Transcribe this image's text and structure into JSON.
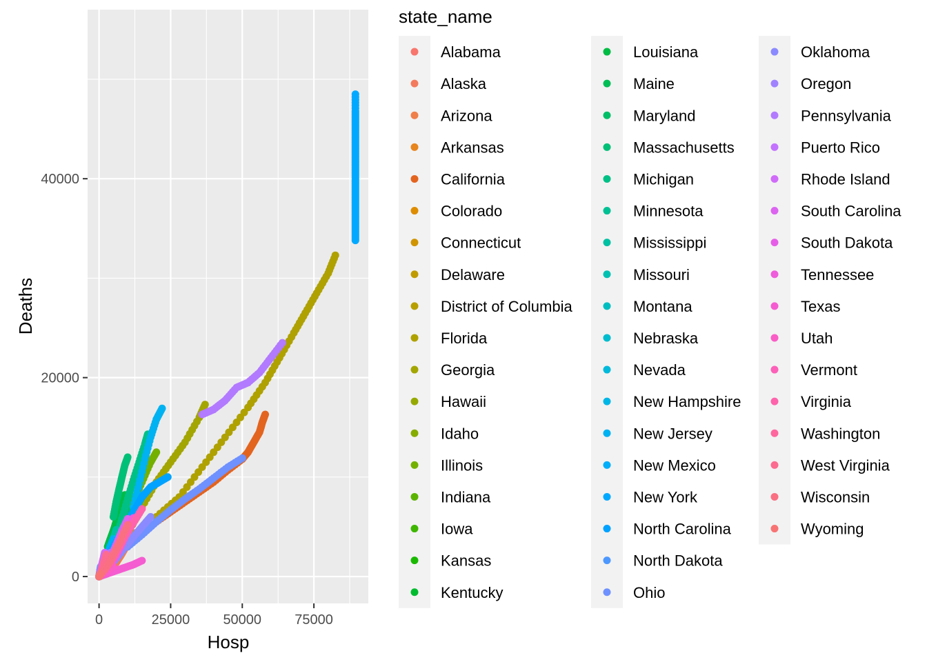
{
  "chart_data": {
    "type": "scatter",
    "xlabel": "Hosp",
    "ylabel": "Deaths",
    "xlim": [
      -4000,
      94000
    ],
    "ylim": [
      -2700,
      57000
    ],
    "x_ticks": [
      0,
      25000,
      50000,
      75000
    ],
    "x_tick_labels": [
      "0",
      "25000",
      "50000",
      "75000"
    ],
    "y_ticks": [
      0,
      20000,
      40000
    ],
    "y_tick_labels": [
      "0",
      "20000",
      "40000"
    ],
    "grid": true,
    "legend": {
      "title": "state_name",
      "placement": "right",
      "columns": 3
    },
    "series": [
      {
        "name": "Alabama",
        "color": "#F8766D",
        "x": [
          0,
          500,
          1000,
          1500,
          2000,
          2500,
          3000
        ],
        "y": [
          0,
          100,
          250,
          450,
          700,
          900,
          1100
        ]
      },
      {
        "name": "Alaska",
        "color": "#F47A5D",
        "x": [
          0,
          50,
          100
        ],
        "y": [
          0,
          5,
          10
        ]
      },
      {
        "name": "Arizona",
        "color": "#EF7F4B",
        "x": [
          0,
          2000,
          4000,
          6000,
          8000,
          10000,
          12000
        ],
        "y": [
          0,
          300,
          800,
          1400,
          2300,
          3300,
          4400
        ]
      },
      {
        "name": "Arkansas",
        "color": "#E7851E",
        "x": [
          0,
          500,
          1000,
          1500,
          2000,
          2500,
          3000,
          3500,
          4000
        ],
        "y": [
          0,
          50,
          150,
          300,
          500,
          700,
          900,
          1100,
          1200
        ]
      },
      {
        "name": "California",
        "color": "#E3641F",
        "x": [
          20000,
          25000,
          30000,
          35000,
          40000,
          45000,
          50000,
          52000,
          54000,
          56000,
          57000,
          58000
        ],
        "y": [
          5500,
          6500,
          7500,
          8500,
          9500,
          10700,
          11800,
          12500,
          13500,
          14500,
          15500,
          16300
        ]
      },
      {
        "name": "Colorado",
        "color": "#DE8C00",
        "x": [
          0,
          2000,
          4000,
          6000,
          8000,
          10000
        ],
        "y": [
          0,
          700,
          1500,
          2300,
          3000,
          3600
        ]
      },
      {
        "name": "Connecticut",
        "color": "#CF9400",
        "x": [
          0,
          2000,
          4000,
          6000,
          8000,
          10000,
          11000
        ],
        "y": [
          0,
          1000,
          2000,
          3000,
          4100,
          5500,
          6500
        ]
      },
      {
        "name": "Delaware",
        "color": "#BF9B00",
        "x": [
          0,
          200,
          400,
          600
        ],
        "y": [
          0,
          100,
          300,
          500
        ]
      },
      {
        "name": "District of Columbia",
        "color": "#B79F00",
        "x": [
          0,
          100,
          200,
          300
        ],
        "y": [
          0,
          50,
          150,
          250
        ]
      },
      {
        "name": "Florida",
        "color": "#AFA100",
        "x": [
          20000,
          28000,
          36000,
          44000,
          52000,
          58000,
          63000,
          68000,
          72000,
          76000,
          80000,
          82500
        ],
        "y": [
          6000,
          8000,
          11000,
          14000,
          17000,
          19500,
          22000,
          24500,
          26500,
          28500,
          30500,
          32300
        ]
      },
      {
        "name": "Georgia",
        "color": "#A3A500",
        "x": [
          5000,
          10000,
          15000,
          20000,
          25000,
          30000,
          35000,
          37000
        ],
        "y": [
          2000,
          4300,
          7000,
          9500,
          11500,
          13500,
          16000,
          17300
        ]
      },
      {
        "name": "Hawaii",
        "color": "#96A900",
        "x": [
          0,
          100,
          200,
          300
        ],
        "y": [
          0,
          50,
          100,
          150
        ]
      },
      {
        "name": "Idaho",
        "color": "#86AC00",
        "x": [
          0,
          300,
          600,
          900,
          1200
        ],
        "y": [
          0,
          100,
          250,
          400,
          550
        ]
      },
      {
        "name": "Illinois",
        "color": "#73B000",
        "x": [
          0,
          3000,
          6000,
          9000,
          12000,
          15000,
          18000,
          20000
        ],
        "y": [
          0,
          1500,
          3500,
          5500,
          7500,
          9500,
          11500,
          12500
        ]
      },
      {
        "name": "Indiana",
        "color": "#5BB300",
        "x": [
          0,
          2000,
          4000,
          6000,
          8000,
          10000,
          12000
        ],
        "y": [
          0,
          1000,
          2200,
          3500,
          5000,
          6500,
          8000
        ]
      },
      {
        "name": "Iowa",
        "color": "#3FB600",
        "x": [
          0,
          1000,
          2000,
          3000,
          4000
        ],
        "y": [
          0,
          600,
          1400,
          2400,
          3300
        ]
      },
      {
        "name": "Kansas",
        "color": "#1AB900",
        "x": [
          0,
          1000,
          2000,
          3000,
          4000,
          5000
        ],
        "y": [
          0,
          300,
          700,
          1400,
          2200,
          3000
        ]
      },
      {
        "name": "Kentucky",
        "color": "#00BB2E",
        "x": [
          0,
          2000,
          4000,
          6000,
          8000,
          9000
        ],
        "y": [
          0,
          500,
          1200,
          2200,
          3500,
          4500
        ]
      },
      {
        "name": "Louisiana",
        "color": "#00BC45",
        "x": [
          3000,
          4000,
          5000,
          6000,
          7000,
          8000,
          9000
        ],
        "y": [
          3000,
          3800,
          4600,
          5500,
          6400,
          7500,
          8200
        ]
      },
      {
        "name": "Maine",
        "color": "#00BD56",
        "x": [
          0,
          100,
          200,
          300
        ],
        "y": [
          0,
          100,
          200,
          300
        ]
      },
      {
        "name": "Maryland",
        "color": "#00BE67",
        "x": [
          0,
          3000,
          6000,
          9000,
          12000,
          14000
        ],
        "y": [
          0,
          1500,
          3300,
          5200,
          7000,
          8200
        ]
      },
      {
        "name": "Massachusetts",
        "color": "#00BF77",
        "x": [
          5000,
          6000,
          7000,
          8000,
          9000,
          10000
        ],
        "y": [
          6000,
          7500,
          8800,
          10000,
          11200,
          12000
        ]
      },
      {
        "name": "Michigan",
        "color": "#00C086",
        "x": [
          2000,
          4000,
          6000,
          8000,
          10000,
          12000,
          14000,
          16000,
          17000
        ],
        "y": [
          1000,
          2500,
          4000,
          5800,
          7800,
          9700,
          11500,
          13300,
          14300
        ]
      },
      {
        "name": "Minnesota",
        "color": "#00C094",
        "x": [
          0,
          2000,
          4000,
          6000,
          8000,
          10000
        ],
        "y": [
          0,
          800,
          1600,
          2700,
          3800,
          4600
        ]
      },
      {
        "name": "Mississippi",
        "color": "#00C0A3",
        "x": [
          0,
          1000,
          2000,
          3000,
          4000,
          5000,
          6000
        ],
        "y": [
          0,
          500,
          1100,
          1900,
          2900,
          3800,
          4700
        ]
      },
      {
        "name": "Missouri",
        "color": "#00C0B2",
        "x": [
          0,
          2000,
          4000,
          6000,
          8000,
          10000
        ],
        "y": [
          0,
          400,
          1100,
          2200,
          3500,
          5000
        ]
      },
      {
        "name": "Montana",
        "color": "#00BEC0",
        "x": [
          0,
          300,
          600,
          900,
          1200
        ],
        "y": [
          0,
          100,
          250,
          500,
          800
        ]
      },
      {
        "name": "Nebraska",
        "color": "#00BCCE",
        "x": [
          0,
          1000,
          2000,
          3000
        ],
        "y": [
          0,
          300,
          800,
          1400
        ]
      },
      {
        "name": "Nevada",
        "color": "#00B9DB",
        "x": [
          0,
          1000,
          2000,
          3000,
          4000,
          5000
        ],
        "y": [
          0,
          600,
          1300,
          2200,
          3000,
          3800
        ]
      },
      {
        "name": "New Hampshire",
        "color": "#00B6E6",
        "x": [
          0,
          200,
          400,
          600,
          800
        ],
        "y": [
          0,
          200,
          450,
          700,
          900
        ]
      },
      {
        "name": "New Jersey",
        "color": "#00B2F1",
        "x": [
          12000,
          14000,
          16000,
          18000,
          20000,
          22000
        ],
        "y": [
          7000,
          9300,
          11800,
          14000,
          15800,
          16900
        ]
      },
      {
        "name": "New Mexico",
        "color": "#00AEFA",
        "x": [
          0,
          1000,
          2000,
          3000,
          4000,
          5000
        ],
        "y": [
          0,
          500,
          1300,
          2300,
          3100,
          3700
        ]
      },
      {
        "name": "New York",
        "color": "#00A9FF",
        "x": [
          89500,
          89500,
          89500,
          89500,
          89500,
          89500,
          89500,
          89500,
          89500,
          89500,
          89500,
          89500,
          89500,
          89500,
          89500
        ],
        "y": [
          33800,
          34800,
          35800,
          36800,
          37800,
          38800,
          39800,
          40800,
          41800,
          42800,
          43800,
          44800,
          45800,
          46800,
          48500
        ]
      },
      {
        "name": "North Carolina",
        "color": "#00A2FF",
        "x": [
          3000,
          6000,
          9000,
          12000,
          15000,
          18000,
          21000,
          24000
        ],
        "y": [
          2000,
          3500,
          5000,
          6500,
          8000,
          9000,
          9500,
          10000
        ]
      },
      {
        "name": "North Dakota",
        "color": "#4D98FF",
        "x": [
          0,
          200,
          400,
          600
        ],
        "y": [
          0,
          300,
          700,
          1000
        ]
      },
      {
        "name": "Ohio",
        "color": "#6F91FF",
        "x": [
          10000,
          15000,
          20000,
          25000,
          30000,
          35000,
          40000,
          45000,
          50000
        ],
        "y": [
          3000,
          4200,
          5500,
          6700,
          7800,
          8800,
          9900,
          11000,
          11900
        ]
      },
      {
        "name": "Oklahoma",
        "color": "#8B8AFF",
        "x": [
          0,
          3000,
          6000,
          9000,
          12000,
          15000,
          18000
        ],
        "y": [
          0,
          800,
          1800,
          2900,
          4000,
          5000,
          6000
        ]
      },
      {
        "name": "Oregon",
        "color": "#A082FF",
        "x": [
          0,
          1000,
          2000,
          3000,
          4000
        ],
        "y": [
          0,
          500,
          1200,
          1800,
          2400
        ]
      },
      {
        "name": "Pennsylvania",
        "color": "#B27AFF",
        "x": [
          36000,
          40000,
          44000,
          48000,
          52000,
          56000,
          60000,
          64000
        ],
        "y": [
          16300,
          16800,
          17700,
          19000,
          19500,
          20500,
          22000,
          23500
        ]
      },
      {
        "name": "Puerto Rico",
        "color": "#C372FF",
        "x": [
          0,
          500,
          1000,
          1500,
          2000
        ],
        "y": [
          0,
          300,
          700,
          1300,
          1800
        ]
      },
      {
        "name": "Rhode Island",
        "color": "#D06BF9",
        "x": [
          0,
          500,
          1000,
          1500,
          2000
        ],
        "y": [
          0,
          500,
          1200,
          1800,
          2400
        ]
      },
      {
        "name": "South Carolina",
        "color": "#DC64F1",
        "x": [
          0,
          2000,
          4000,
          6000,
          8000,
          10000
        ],
        "y": [
          0,
          800,
          1900,
          3200,
          4600,
          5800
        ]
      },
      {
        "name": "South Dakota",
        "color": "#E65EE7",
        "x": [
          0,
          300,
          600,
          900
        ],
        "y": [
          0,
          300,
          600,
          900
        ]
      },
      {
        "name": "Tennessee",
        "color": "#EF5CDC",
        "x": [
          0,
          2000,
          4000,
          6000,
          8000,
          10000,
          12000
        ],
        "y": [
          0,
          500,
          1200,
          2100,
          3300,
          4600,
          5900
        ]
      },
      {
        "name": "Texas",
        "color": "#F55CD1",
        "x": [
          0,
          3000,
          6000,
          9000,
          12000,
          15000
        ],
        "y": [
          0,
          300,
          600,
          900,
          1200,
          1600
        ]
      },
      {
        "name": "Utah",
        "color": "#FA5DC6",
        "x": [
          0,
          1000,
          2000,
          3000,
          4000,
          5000
        ],
        "y": [
          0,
          200,
          400,
          600,
          800,
          1000
        ]
      },
      {
        "name": "Vermont",
        "color": "#FD60B9",
        "x": [
          0,
          100,
          200,
          300
        ],
        "y": [
          0,
          50,
          100,
          150
        ]
      },
      {
        "name": "Virginia",
        "color": "#FF63AC",
        "x": [
          0,
          3000,
          6000,
          9000,
          12000,
          15000
        ],
        "y": [
          0,
          1200,
          2600,
          4000,
          5400,
          6800
        ]
      },
      {
        "name": "Washington",
        "color": "#FE679E",
        "x": [
          0,
          2000,
          4000,
          6000,
          8000
        ],
        "y": [
          0,
          700,
          1500,
          2500,
          3500
        ]
      },
      {
        "name": "West Virginia",
        "color": "#FC6B90",
        "x": [
          0,
          500,
          1000,
          1500,
          2000,
          2500
        ],
        "y": [
          0,
          300,
          700,
          1200,
          1700,
          2200
        ]
      },
      {
        "name": "Wisconsin",
        "color": "#FA6F82",
        "x": [
          0,
          2000,
          4000,
          6000,
          8000,
          10000
        ],
        "y": [
          0,
          700,
          1600,
          2800,
          4000,
          5200
        ]
      },
      {
        "name": "Wyoming",
        "color": "#F87474",
        "x": [
          0,
          100,
          200,
          300
        ],
        "y": [
          0,
          50,
          150,
          250
        ]
      }
    ]
  }
}
